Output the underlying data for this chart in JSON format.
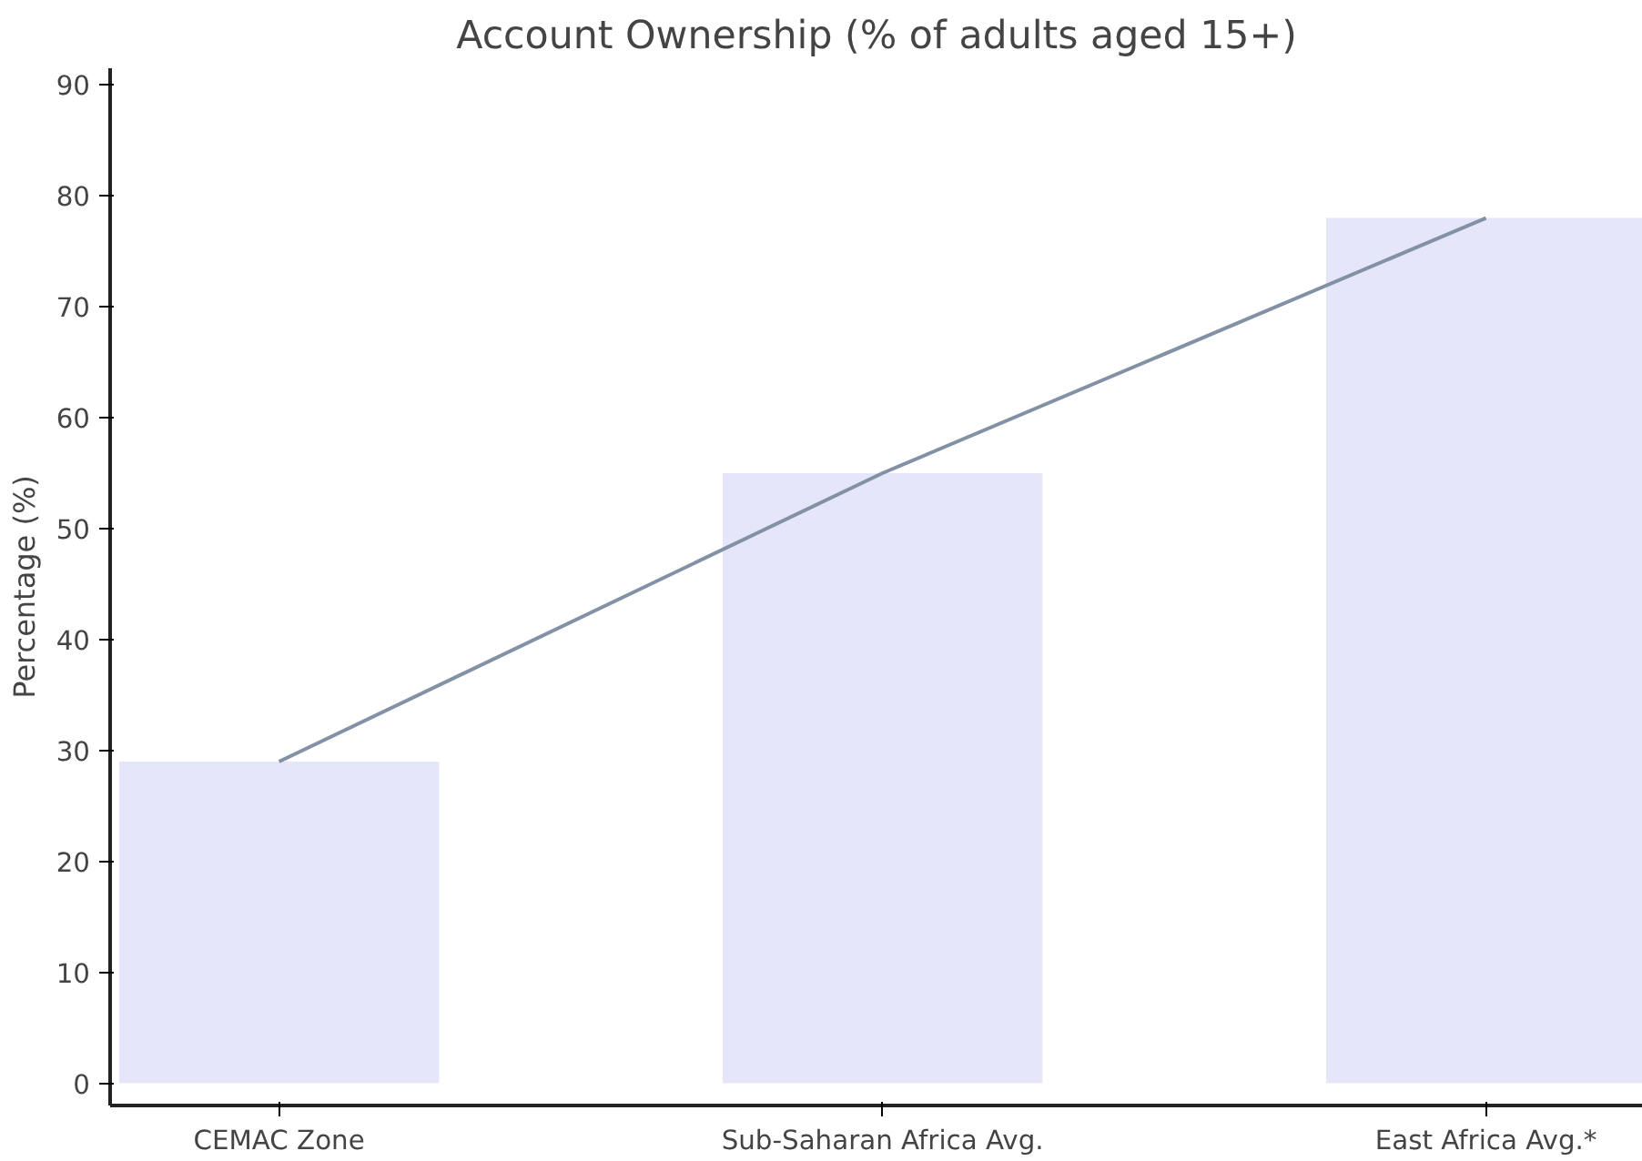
{
  "chart_data": {
    "type": "bar",
    "title": "Account Ownership (% of adults aged 15+)",
    "ylabel": "Percentage (%)",
    "categories": [
      "CEMAC Zone",
      "Sub-Saharan Africa Avg.",
      "East Africa Avg.*"
    ],
    "series": [
      {
        "color": "#e6e6fa",
        "values": [
          29,
          55,
          78
        ]
      },
      {
        "type": "line",
        "color": "#8391a7",
        "values": [
          29,
          55,
          78
        ]
      }
    ],
    "ylim": [
      -2,
      91.5
    ],
    "yticks": [
      0,
      10,
      20,
      30,
      40,
      50,
      60,
      70,
      80,
      90
    ],
    "grid": false
  }
}
